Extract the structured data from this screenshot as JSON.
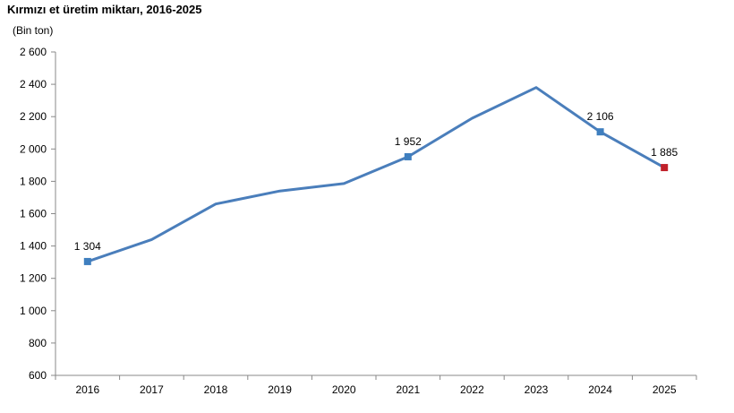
{
  "chart_data": {
    "type": "line",
    "title": "Kırmızı et üretim miktarı, 2016-2025",
    "ylabel": "(Bin ton)",
    "xlabel": "",
    "categories": [
      "2016",
      "2017",
      "2018",
      "2019",
      "2020",
      "2021",
      "2022",
      "2023",
      "2024",
      "2025"
    ],
    "series": [
      {
        "values": [
          1304,
          1440,
          1660,
          1740,
          1786,
          1952,
          2190,
          2380,
          2106,
          1885
        ],
        "color": "#4a7ebb"
      }
    ],
    "ylim": [
      600,
      2600
    ],
    "yticks": [
      600,
      800,
      1000,
      1200,
      1400,
      1600,
      1800,
      2000,
      2200,
      2400,
      2600
    ],
    "ytick_labels": [
      "600",
      "800",
      "1 000",
      "1 200",
      "1 400",
      "1 600",
      "1 800",
      "2 000",
      "2 200",
      "2 400",
      "2 600"
    ],
    "markers": [
      {
        "category": "2016",
        "color": "#3f7fbf"
      },
      {
        "category": "2021",
        "color": "#3f7fbf"
      },
      {
        "category": "2024",
        "color": "#3f7fbf"
      },
      {
        "category": "2025",
        "color": "#c0202a"
      }
    ],
    "data_labels": [
      {
        "category": "2016",
        "text": "1 304"
      },
      {
        "category": "2021",
        "text": "1 952"
      },
      {
        "category": "2024",
        "text": "2 106"
      },
      {
        "category": "2025",
        "text": "1 885"
      }
    ],
    "grid": false,
    "axis_color": "#888888",
    "legend": "none"
  }
}
